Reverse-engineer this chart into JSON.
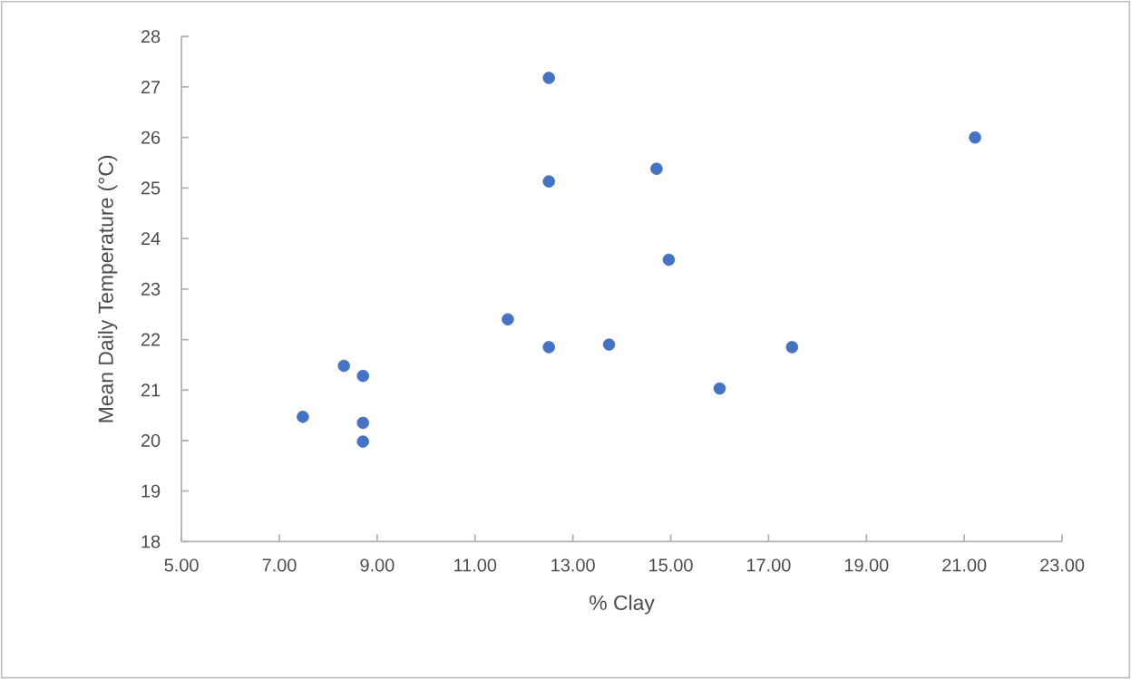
{
  "chart_data": {
    "type": "scatter",
    "xlabel": "% Clay",
    "ylabel": "Mean Daily Temperature (°C)",
    "x": [
      7.48,
      8.32,
      8.71,
      8.71,
      8.71,
      11.67,
      12.51,
      12.51,
      12.51,
      13.74,
      14.71,
      14.96,
      16.0,
      17.48,
      21.22
    ],
    "values": [
      20.47,
      21.48,
      21.28,
      20.35,
      19.98,
      22.4,
      21.85,
      25.13,
      27.18,
      21.9,
      25.38,
      23.58,
      21.03,
      21.85,
      26.0
    ],
    "color": "#4472c4",
    "xlim": [
      5,
      23
    ],
    "ylim": [
      18,
      28
    ],
    "xticks": [
      {
        "value": 5,
        "label": "5.00"
      },
      {
        "value": 7,
        "label": "7.00"
      },
      {
        "value": 9,
        "label": "9.00"
      },
      {
        "value": 11,
        "label": "11.00"
      },
      {
        "value": 13,
        "label": "13.00"
      },
      {
        "value": 15,
        "label": "15.00"
      },
      {
        "value": 17,
        "label": "17.00"
      },
      {
        "value": 19,
        "label": "19.00"
      },
      {
        "value": 21,
        "label": "21.00"
      },
      {
        "value": 23,
        "label": "23.00"
      }
    ],
    "yticks": [
      18,
      19,
      20,
      21,
      22,
      23,
      24,
      25,
      26,
      27,
      28
    ],
    "grid": false
  }
}
